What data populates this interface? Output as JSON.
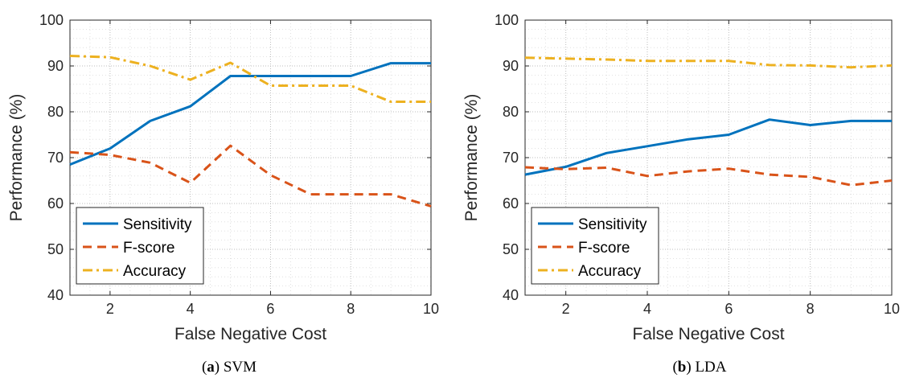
{
  "figure": {
    "charts": [
      {
        "caption_letter": "a",
        "caption_text": "SVM",
        "legend_labels": [
          "Sensitivity",
          "F-score",
          "Accuracy"
        ]
      },
      {
        "caption_letter": "b",
        "caption_text": "LDA",
        "legend_labels": [
          "Sensitivity",
          "F-score",
          "Accuracy"
        ]
      }
    ]
  },
  "chart_data": [
    {
      "type": "line",
      "title": "",
      "xlabel": "False Negative Cost",
      "ylabel": "Performance (%)",
      "xlim": [
        1,
        10
      ],
      "ylim": [
        40,
        100
      ],
      "xticks": [
        2,
        4,
        6,
        8,
        10
      ],
      "yticks": [
        40,
        50,
        60,
        70,
        80,
        90,
        100
      ],
      "grid": true,
      "minor_grid": true,
      "legend_position": "bottom-left",
      "x": [
        1,
        2,
        3,
        4,
        5,
        6,
        7,
        8,
        9,
        10
      ],
      "series": [
        {
          "name": "Sensitivity",
          "color": "#0072BD",
          "style": "solid",
          "values": [
            68.5,
            72,
            78,
            81.2,
            87.8,
            87.8,
            87.8,
            87.8,
            90.6,
            90.6
          ]
        },
        {
          "name": "F-score",
          "color": "#D95319",
          "style": "dashed",
          "values": [
            71.2,
            70.6,
            68.9,
            64.5,
            72.6,
            66.2,
            62,
            62,
            62,
            59.4
          ]
        },
        {
          "name": "Accuracy",
          "color": "#EDB120",
          "style": "dashdot",
          "values": [
            92.2,
            91.9,
            90,
            87,
            90.7,
            85.7,
            85.7,
            85.7,
            82.2,
            82.2
          ]
        }
      ]
    },
    {
      "type": "line",
      "title": "",
      "xlabel": "False Negative Cost",
      "ylabel": "Performance (%)",
      "xlim": [
        1,
        10
      ],
      "ylim": [
        40,
        100
      ],
      "xticks": [
        2,
        4,
        6,
        8,
        10
      ],
      "yticks": [
        40,
        50,
        60,
        70,
        80,
        90,
        100
      ],
      "grid": true,
      "minor_grid": true,
      "legend_position": "bottom-left",
      "x": [
        1,
        2,
        3,
        4,
        5,
        6,
        7,
        8,
        9,
        10
      ],
      "series": [
        {
          "name": "Sensitivity",
          "color": "#0072BD",
          "style": "solid",
          "values": [
            66.3,
            68,
            71,
            72.5,
            74,
            75,
            78.3,
            77.1,
            78,
            78
          ]
        },
        {
          "name": "F-score",
          "color": "#D95319",
          "style": "dashed",
          "values": [
            67.9,
            67.5,
            67.8,
            66,
            67,
            67.6,
            66.3,
            65.8,
            64,
            65
          ]
        },
        {
          "name": "Accuracy",
          "color": "#EDB120",
          "style": "dashdot",
          "values": [
            91.8,
            91.6,
            91.4,
            91.1,
            91.1,
            91.1,
            90.2,
            90.1,
            89.7,
            90.1
          ]
        }
      ]
    }
  ]
}
